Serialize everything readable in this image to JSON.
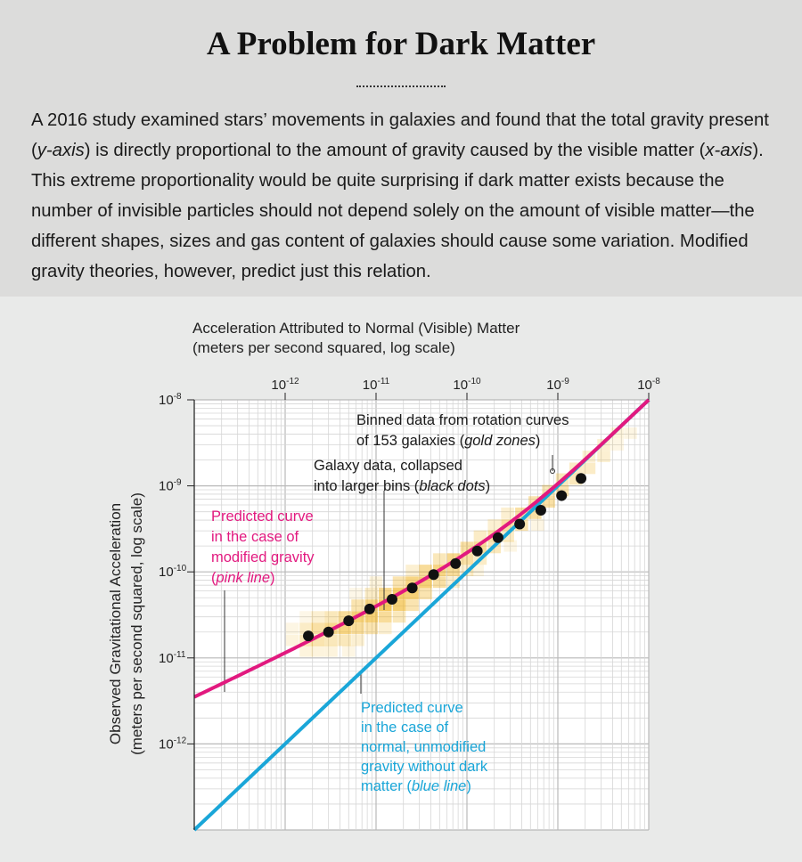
{
  "header": {
    "title": "A Problem for Dark Matter",
    "description": [
      {
        "text": "A 2016 study examined stars’ movements in galaxies and found that the total gravity present (",
        "italic": false
      },
      {
        "text": "y-axis",
        "italic": true
      },
      {
        "text": ") is directly proportional to the amount of gravity caused by the visible matter (",
        "italic": false
      },
      {
        "text": "x-axis",
        "italic": true
      },
      {
        "text": "). This extreme proportionality would be quite surprising if dark matter exists because the number of invisible particles should not depend solely on the amount of visible matter—the different shapes, sizes and gas content of galaxies should cause some variation. Modified gravity theories, however, predict just this relation.",
        "italic": false
      }
    ]
  },
  "chart_data": {
    "type": "scatter",
    "x_scale": "log",
    "y_scale": "log",
    "xlim": [
      1e-13,
      1e-08
    ],
    "ylim": [
      1e-13,
      1e-08
    ],
    "grid": true,
    "xlabel": [
      "Acceleration Attributed to Normal (Visible) Matter",
      "(meters per second squared, log scale)"
    ],
    "ylabel": [
      "Observed Gravitational Acceleration",
      "(meters per second squared, log scale)"
    ],
    "x_ticks": [
      {
        "value": 1e-12,
        "base": "10",
        "exp": "-12"
      },
      {
        "value": 1e-11,
        "base": "10",
        "exp": "-11"
      },
      {
        "value": 1e-10,
        "base": "10",
        "exp": "-10"
      },
      {
        "value": 1e-09,
        "base": "10",
        "exp": "-9"
      },
      {
        "value": 1e-08,
        "base": "10",
        "exp": "-8"
      }
    ],
    "y_ticks": [
      {
        "value": 1e-12,
        "base": "10",
        "exp": "-12"
      },
      {
        "value": 1e-11,
        "base": "10",
        "exp": "-11"
      },
      {
        "value": 1e-10,
        "base": "10",
        "exp": "-10"
      },
      {
        "value": 1e-09,
        "base": "10",
        "exp": "-9"
      },
      {
        "value": 1e-08,
        "base": "10",
        "exp": "-8"
      }
    ],
    "series": [
      {
        "label": [
          "Galaxy data, collapsed",
          "into larger bins (black dots)"
        ],
        "color": "#111111",
        "points": [
          [
            1.8e-12,
            1.8e-11
          ],
          [
            3e-12,
            2e-11
          ],
          [
            5e-12,
            2.7e-11
          ],
          [
            8.5e-12,
            3.7e-11
          ],
          [
            1.5e-11,
            4.8e-11
          ],
          [
            2.5e-11,
            6.5e-11
          ],
          [
            4.3e-11,
            9.3e-11
          ],
          [
            7.5e-11,
            1.25e-10
          ],
          [
            1.3e-10,
            1.75e-10
          ],
          [
            2.2e-10,
            2.5e-10
          ],
          [
            3.8e-10,
            3.6e-10
          ],
          [
            6.5e-10,
            5.2e-10
          ],
          [
            1.1e-09,
            7.7e-10
          ],
          [
            1.8e-09,
            1.22e-09
          ]
        ]
      },
      {
        "label": [
          "Predicted curve",
          "in the case of",
          "modified gravity",
          "(pink line)"
        ],
        "color": "#e2197f",
        "function": "g_obs = g_bar / (1 - exp(-sqrt(g_bar / 1.2e-10)))"
      },
      {
        "label": [
          "Predicted curve",
          "in the case of",
          "normal, unmodified",
          "gravity without dark",
          "matter (blue line)"
        ],
        "color": "#1aa6d8",
        "function": "g_obs = g_bar"
      },
      {
        "label": [
          "Binned data from rotation curves",
          "of 153 galaxies (gold zones)"
        ],
        "color": "#f2b822",
        "type": "heatmap"
      }
    ],
    "annotations": {
      "gold": [
        {
          "text": "Binned data from rotation curves",
          "italic": false
        },
        {
          "text": "of 153 galaxies (",
          "italic": false
        },
        {
          "text": "gold zones",
          "italic": true
        },
        {
          "text": ")",
          "italic": false
        }
      ],
      "dots": [
        {
          "text": "Galaxy data, collapsed",
          "italic": false
        },
        {
          "text": "into larger bins (",
          "italic": false
        },
        {
          "text": "black dots",
          "italic": true
        },
        {
          "text": ")",
          "italic": false
        }
      ],
      "pink": [
        {
          "text": "Predicted curve",
          "italic": false
        },
        {
          "text": "in the case of",
          "italic": false
        },
        {
          "text": "modified gravity",
          "italic": false
        },
        {
          "text": "(",
          "italic": false
        },
        {
          "text": "pink line",
          "italic": true
        },
        {
          "text": ")",
          "italic": false
        }
      ],
      "blue": [
        {
          "text": "Predicted curve",
          "italic": false
        },
        {
          "text": "in the case of",
          "italic": false
        },
        {
          "text": "normal, unmodified",
          "italic": false
        },
        {
          "text": "gravity without dark",
          "italic": false
        },
        {
          "text": "matter (",
          "italic": false
        },
        {
          "text": "blue line",
          "italic": true
        },
        {
          "text": ")",
          "italic": false
        }
      ]
    },
    "heatmap_cells": [
      [
        1.2e-12,
        1.6e-11,
        0.15
      ],
      [
        1.2e-12,
        2.2e-11,
        0.12
      ],
      [
        1.7e-12,
        1.2e-11,
        0.15
      ],
      [
        1.7e-12,
        1.6e-11,
        0.3
      ],
      [
        1.7e-12,
        2.2e-11,
        0.25
      ],
      [
        2.3e-12,
        1.6e-11,
        0.35
      ],
      [
        2.3e-12,
        2.2e-11,
        0.4
      ],
      [
        2.3e-12,
        3e-11,
        0.2
      ],
      [
        3.2e-12,
        1.6e-11,
        0.3
      ],
      [
        3.2e-12,
        2.2e-11,
        0.5
      ],
      [
        3.2e-12,
        3e-11,
        0.3
      ],
      [
        3.2e-12,
        1.2e-11,
        0.15
      ],
      [
        4.5e-12,
        2.2e-11,
        0.55
      ],
      [
        4.5e-12,
        3e-11,
        0.45
      ],
      [
        4.5e-12,
        1.6e-11,
        0.3
      ],
      [
        6.3e-12,
        2.2e-11,
        0.45
      ],
      [
        6.3e-12,
        3e-11,
        0.6
      ],
      [
        6.3e-12,
        4.1e-11,
        0.35
      ],
      [
        6.3e-12,
        1.6e-11,
        0.2
      ],
      [
        8.9e-12,
        3e-11,
        0.6
      ],
      [
        8.9e-12,
        4.1e-11,
        0.55
      ],
      [
        8.9e-12,
        2.2e-11,
        0.35
      ],
      [
        8.9e-12,
        5.6e-11,
        0.25
      ],
      [
        1.26e-11,
        3e-11,
        0.45
      ],
      [
        1.26e-11,
        4.1e-11,
        0.7
      ],
      [
        1.26e-11,
        5.6e-11,
        0.5
      ],
      [
        1.26e-11,
        2.2e-11,
        0.2
      ],
      [
        1.8e-11,
        4.1e-11,
        0.6
      ],
      [
        1.8e-11,
        5.6e-11,
        0.65
      ],
      [
        1.8e-11,
        7.6e-11,
        0.35
      ],
      [
        1.8e-11,
        3e-11,
        0.3
      ],
      [
        2.5e-11,
        5.6e-11,
        0.6
      ],
      [
        2.5e-11,
        7.6e-11,
        0.55
      ],
      [
        2.5e-11,
        4.1e-11,
        0.35
      ],
      [
        2.5e-11,
        1.04e-10,
        0.2
      ],
      [
        3.5e-11,
        7.6e-11,
        0.6
      ],
      [
        3.5e-11,
        1.04e-10,
        0.45
      ],
      [
        3.5e-11,
        5.6e-11,
        0.35
      ],
      [
        5e-11,
        1.04e-10,
        0.55
      ],
      [
        5e-11,
        7.6e-11,
        0.4
      ],
      [
        5e-11,
        1.41e-10,
        0.3
      ],
      [
        7.1e-11,
        1.04e-10,
        0.45
      ],
      [
        7.1e-11,
        1.41e-10,
        0.5
      ],
      [
        7.1e-11,
        7.6e-11,
        0.2
      ],
      [
        1e-10,
        1.41e-10,
        0.4
      ],
      [
        1e-10,
        1.92e-10,
        0.4
      ],
      [
        1e-10,
        1.04e-10,
        0.2
      ],
      [
        1.4e-10,
        1.92e-10,
        0.45
      ],
      [
        1.4e-10,
        1.41e-10,
        0.25
      ],
      [
        1.4e-10,
        2.6e-10,
        0.25
      ],
      [
        2e-10,
        2.6e-10,
        0.4
      ],
      [
        2e-10,
        1.92e-10,
        0.3
      ],
      [
        2e-10,
        3.5e-10,
        0.2
      ],
      [
        2.8e-10,
        3.5e-10,
        0.4
      ],
      [
        2.8e-10,
        2.6e-10,
        0.25
      ],
      [
        2.8e-10,
        4.8e-10,
        0.2
      ],
      [
        4e-10,
        3.5e-10,
        0.35
      ],
      [
        4e-10,
        4.8e-10,
        0.4
      ],
      [
        5.6e-10,
        4.8e-10,
        0.4
      ],
      [
        5.6e-10,
        6.5e-10,
        0.35
      ],
      [
        7.9e-10,
        6.5e-10,
        0.4
      ],
      [
        7.9e-10,
        8.8e-10,
        0.3
      ],
      [
        1.12e-09,
        8.8e-10,
        0.35
      ],
      [
        1.12e-09,
        1.2e-09,
        0.3
      ],
      [
        1.58e-09,
        1.2e-09,
        0.3
      ],
      [
        1.58e-09,
        1.6e-09,
        0.25
      ],
      [
        2.2e-09,
        1.6e-09,
        0.25
      ],
      [
        2.2e-09,
        2.2e-09,
        0.2
      ],
      [
        3.2e-09,
        2.2e-09,
        0.2
      ],
      [
        3.2e-09,
        3e-09,
        0.2
      ],
      [
        4.5e-09,
        4.1e-09,
        0.15
      ],
      [
        4.5e-09,
        3e-09,
        0.12
      ],
      [
        6.3e-09,
        4.1e-09,
        0.12
      ],
      [
        1.3e-10,
        1.04e-10,
        0.12
      ],
      [
        3e-10,
        2e-10,
        0.12
      ],
      [
        6e-10,
        3.5e-10,
        0.12
      ],
      [
        1e-11,
        7.6e-11,
        0.15
      ],
      [
        6e-12,
        5.6e-11,
        0.1
      ],
      [
        2.3e-12,
        1.2e-11,
        0.15
      ],
      [
        1.7e-12,
        3e-11,
        0.1
      ],
      [
        5e-12,
        1.2e-11,
        0.12
      ]
    ]
  }
}
